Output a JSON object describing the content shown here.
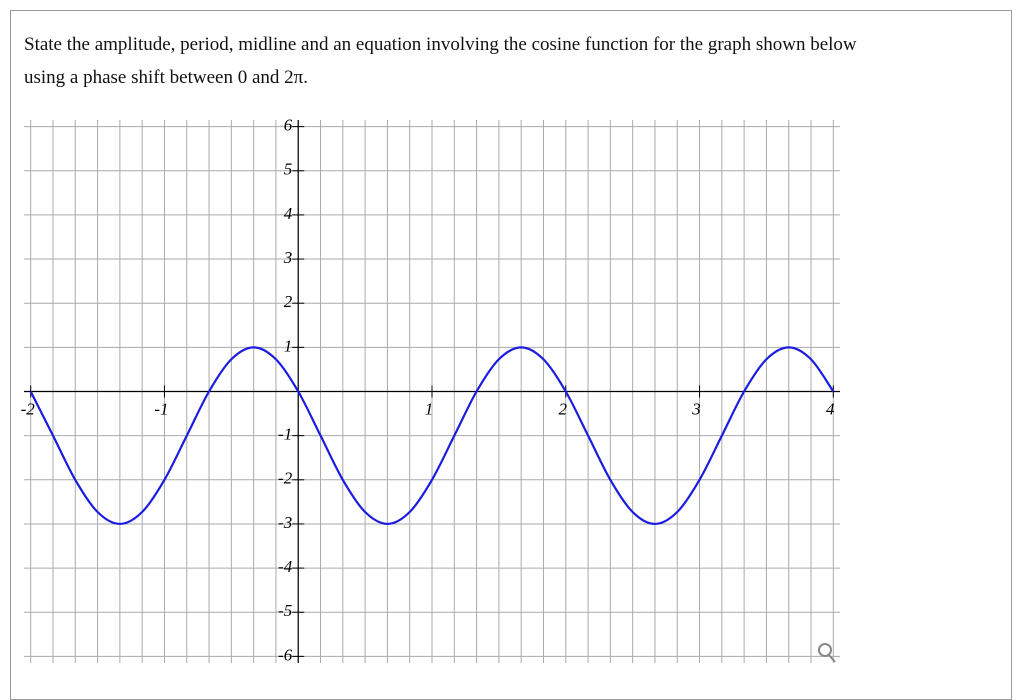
{
  "question": {
    "lines": [
      "State the amplitude, period, midline and an equation involving the cosine function for the graph shown below",
      "using a phase shift between 0 and 2π."
    ]
  },
  "chart_data": {
    "type": "line",
    "x": [
      -2,
      -1.833,
      -1.667,
      -1.5,
      -1.333,
      -1.167,
      -1,
      -0.833,
      -0.667,
      -0.5,
      -0.333,
      -0.167,
      0,
      0.167,
      0.333,
      0.5,
      0.667,
      0.833,
      1,
      1.167,
      1.333,
      1.5,
      1.667,
      1.833,
      2,
      2.167,
      2.333,
      2.5,
      2.667,
      2.833,
      3,
      3.167,
      3.333,
      3.5,
      3.667,
      3.833,
      4
    ],
    "series": [
      {
        "color": "#1c1ce0",
        "values": [
          0,
          -1,
          -2,
          -2.73,
          -3,
          -2.73,
          -2,
          -1,
          0,
          0.73,
          1,
          0.73,
          0,
          -1,
          -2,
          -2.73,
          -3,
          -2.73,
          -2,
          -1,
          0,
          0.73,
          1,
          0.73,
          0,
          -1,
          -2,
          -2.73,
          -3,
          -2.73,
          -2,
          -1,
          0,
          0.73,
          1,
          0.73,
          0
        ]
      }
    ],
    "xlim": [
      -2.05,
      4.05
    ],
    "ylim": [
      -6.15,
      6.15
    ],
    "xticks": [
      -2,
      -1,
      1,
      2,
      3,
      4
    ],
    "yticks": [
      -6,
      -5,
      -4,
      -3,
      -2,
      -1,
      1,
      2,
      3,
      4,
      5,
      6
    ],
    "grid": true
  }
}
